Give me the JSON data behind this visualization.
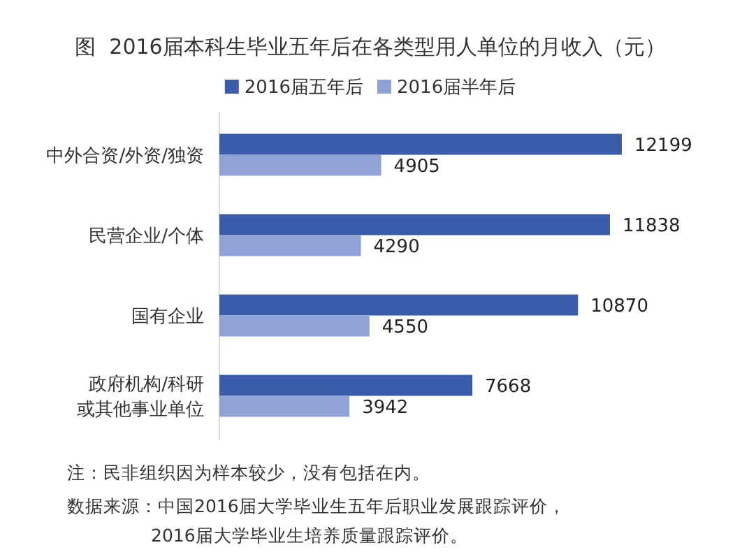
{
  "chart_data": {
    "type": "bar",
    "orientation": "horizontal",
    "title": "图  2016届本科生毕业五年后在各类型用人单位的月收入（元）",
    "categories": [
      "中外合资/外资/独资",
      "民营企业/个体",
      "国有企业",
      "政府机构/科研或其他事业单位"
    ],
    "series": [
      {
        "name": "2016届五年后",
        "color": "#3b5ca8",
        "values": [
          12199,
          11838,
          10870,
          7668
        ]
      },
      {
        "name": "2016届半年后",
        "color": "#8fa3d5",
        "values": [
          4905,
          4290,
          4550,
          3942
        ]
      }
    ],
    "data_labels": true,
    "legend": "top",
    "annotations": [
      "注：民非组织因为样本较少，没有包括在内。",
      "数据来源：中国2016届大学毕业生五年后职业发展跟踪评价，2016届大学毕业生培养质量跟踪评价。"
    ]
  }
}
